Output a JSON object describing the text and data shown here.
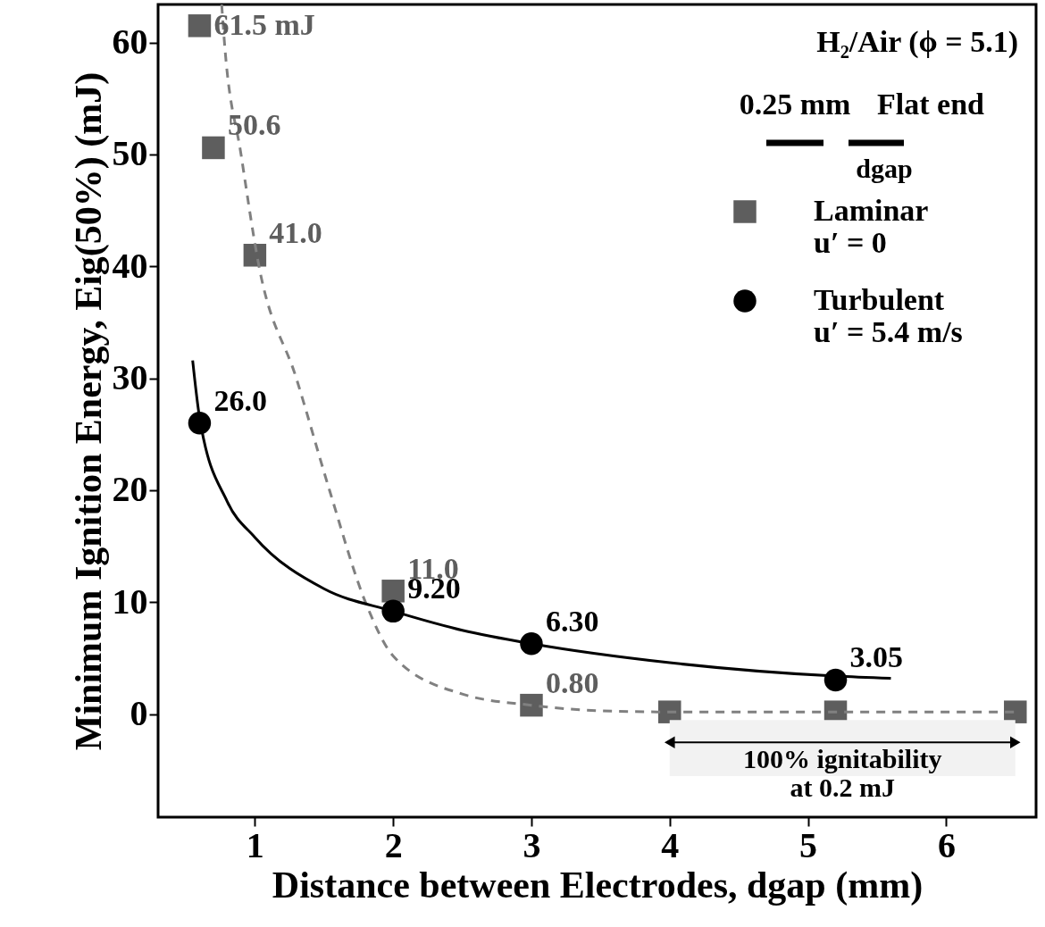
{
  "chart_data": {
    "type": "scatter",
    "xlabel": "Distance between Electrodes, dgap (mm)",
    "ylabel": "Minimum Ignition Energy, Eig(50%) (mJ)",
    "xlim": [
      0.3,
      6.65
    ],
    "ylim": [
      -9.2,
      63.4
    ],
    "xticks": [
      1,
      2,
      3,
      4,
      5,
      6
    ],
    "yticks": [
      0,
      10,
      20,
      30,
      40,
      50,
      60
    ],
    "grid": false,
    "legend": "top right",
    "series": [
      {
        "name": "Laminar\nu′ = 0",
        "marker": "square",
        "color": "#5e5e5e",
        "x": [
          0.6,
          0.7,
          1.0,
          2.0,
          3.0,
          4.0,
          5.2,
          6.5
        ],
        "values": [
          61.5,
          50.6,
          41.0,
          11.0,
          0.8,
          0.2,
          0.2,
          0.2
        ],
        "value_labels": [
          "61.5 mJ",
          "50.6",
          "41.0",
          "11.0",
          "0.80",
          null,
          null,
          null
        ]
      },
      {
        "type": "line",
        "line_style": "dashed",
        "color": "#808080",
        "x": [
          0.76,
          0.78,
          0.9,
          1.03,
          1.3,
          1.54,
          1.8,
          2.0,
          2.5,
          3.0,
          3.5,
          4.0,
          6.5
        ],
        "values": [
          63.4,
          60,
          50,
          40,
          30,
          20,
          10,
          5.2,
          1.8,
          0.8,
          0.3,
          0.2,
          0.2
        ]
      },
      {
        "name": "Turbulent\nu′ = 5.4 m/s",
        "marker": "circle",
        "color": "#000000",
        "x": [
          0.6,
          2.0,
          3.0,
          5.2
        ],
        "values": [
          26.0,
          9.2,
          6.3,
          3.05
        ],
        "value_labels": [
          "26.0",
          "9.20",
          "6.30",
          "3.05"
        ]
      },
      {
        "type": "line",
        "line_style": "solid",
        "color": "#000000",
        "x": [
          0.55,
          0.6,
          0.8,
          1.0,
          1.5,
          2.0,
          2.5,
          3.0,
          4.0,
          5.2,
          5.6
        ],
        "values": [
          31.6,
          26.5,
          19.0,
          15.8,
          11.2,
          9.2,
          7.5,
          6.3,
          4.6,
          3.4,
          3.2
        ]
      }
    ],
    "bands": [
      {
        "axis": "x",
        "from": 4.0,
        "to": 6.5,
        "label": "100% ignitability\nat 0.2 mJ"
      }
    ],
    "annotations": [
      "H₂/Air (ϕ = 5.1)",
      "0.25 mm",
      "Flat end",
      "dgap"
    ]
  }
}
